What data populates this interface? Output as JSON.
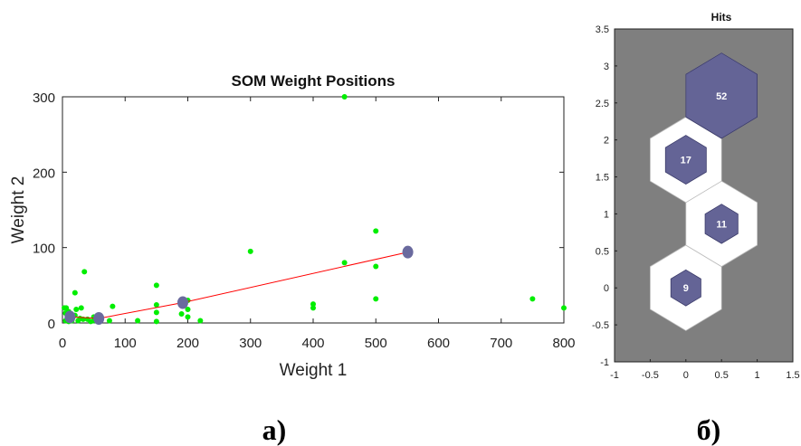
{
  "chart_data": [
    {
      "type": "scatter",
      "title": "SOM Weight Positions",
      "xlabel": "Weight 1",
      "ylabel": "Weight 2",
      "xlim": [
        0,
        800
      ],
      "ylim": [
        0,
        300
      ],
      "xticks": [
        0,
        100,
        200,
        300,
        400,
        500,
        600,
        700,
        800
      ],
      "yticks": [
        0,
        100,
        200,
        300
      ],
      "grid": false,
      "colors": {
        "points": "#00ee00",
        "line": "#ff0000",
        "neurons": "#6a6a9e"
      },
      "points": [
        [
          3,
          20
        ],
        [
          5,
          3
        ],
        [
          5,
          13
        ],
        [
          6,
          20
        ],
        [
          8,
          5
        ],
        [
          10,
          15
        ],
        [
          10,
          2
        ],
        [
          12,
          8
        ],
        [
          15,
          3
        ],
        [
          20,
          10
        ],
        [
          20,
          40
        ],
        [
          22,
          18
        ],
        [
          25,
          3
        ],
        [
          28,
          6
        ],
        [
          30,
          20
        ],
        [
          33,
          5
        ],
        [
          35,
          68
        ],
        [
          40,
          5
        ],
        [
          45,
          2
        ],
        [
          50,
          3
        ],
        [
          50,
          8
        ],
        [
          55,
          5
        ],
        [
          60,
          5
        ],
        [
          75,
          3
        ],
        [
          80,
          22
        ],
        [
          120,
          3
        ],
        [
          150,
          2
        ],
        [
          150,
          14
        ],
        [
          150,
          24
        ],
        [
          150,
          50
        ],
        [
          190,
          12
        ],
        [
          200,
          8
        ],
        [
          200,
          18
        ],
        [
          200,
          30
        ],
        [
          220,
          3
        ],
        [
          300,
          95
        ],
        [
          400,
          20
        ],
        [
          400,
          25
        ],
        [
          450,
          80
        ],
        [
          450,
          300
        ],
        [
          500,
          122
        ],
        [
          500,
          75
        ],
        [
          500,
          32
        ],
        [
          750,
          32
        ],
        [
          800,
          20
        ]
      ],
      "neurons": [
        [
          12,
          8
        ],
        [
          58,
          6
        ],
        [
          192,
          27
        ],
        [
          551,
          94
        ]
      ]
    },
    {
      "type": "hexagonal-hits",
      "title": "Hits",
      "xlim": [
        -1,
        1.5
      ],
      "ylim": [
        -1,
        3.5
      ],
      "xticks": [
        "-1",
        "-0.5",
        "0",
        "0.5",
        "1",
        "1.5"
      ],
      "yticks": [
        "-1",
        "-0.5",
        "0",
        "0.5",
        "1",
        "1.5",
        "2",
        "2.5",
        "3",
        "3.5"
      ],
      "colors": {
        "background": "#7f7f7f",
        "cell": "#ffffff",
        "hit": "#646496"
      },
      "cells": [
        {
          "x": 0,
          "y": 0,
          "hits": 9,
          "label": "9",
          "fraction": 0.421
        },
        {
          "x": 0.5,
          "y": 0.866,
          "hits": 11,
          "label": "11",
          "fraction": 0.46
        },
        {
          "x": 0,
          "y": 1.732,
          "hits": 17,
          "label": "17",
          "fraction": 0.572
        },
        {
          "x": 0.5,
          "y": 2.598,
          "hits": 52,
          "label": "52",
          "fraction": 1.0
        }
      ]
    }
  ],
  "captions": {
    "left": "а)",
    "right": "б)"
  }
}
